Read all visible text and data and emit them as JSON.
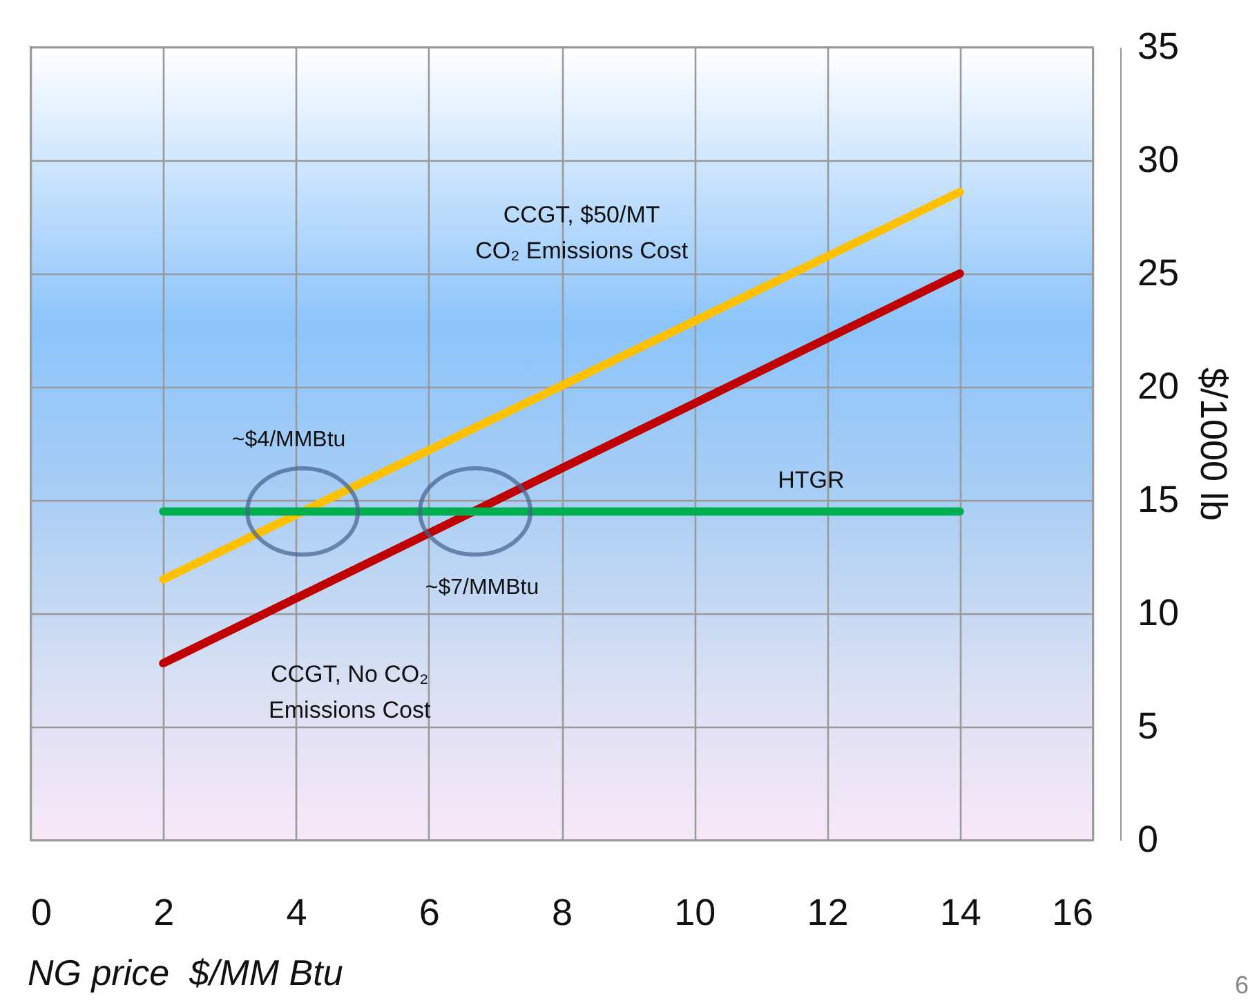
{
  "chart_data": {
    "type": "line",
    "xlabel": "NG price  $/MM Btu",
    "ylabel": "$/1000 lb",
    "x": [
      2,
      14
    ],
    "series": [
      {
        "name": "CCGT, $50/MT\nCO₂ Emissions Cost",
        "color": "#ffc000",
        "values": [
          11.5,
          28.6
        ]
      },
      {
        "name": "CCGT, No CO₂\nEmissions Cost",
        "color": "#c00000",
        "values": [
          7.8,
          25
        ]
      },
      {
        "name": "HTGR",
        "color": "#00b050",
        "values": [
          14.5,
          14.5
        ]
      }
    ],
    "annotations": [
      {
        "text": "~$4/MMBtu",
        "x": 4.1,
        "y": 14.5
      },
      {
        "text": "~$7/MMBtu",
        "x": 6.7,
        "y": 14.5
      },
      "6"
    ],
    "xlim": [
      0,
      16
    ],
    "xticks": [
      0,
      2,
      4,
      6,
      8,
      10,
      12,
      14,
      16
    ],
    "ylim": [
      0,
      35
    ],
    "yticks": [
      0,
      5,
      10,
      15,
      20,
      25,
      30,
      35
    ],
    "grid": true,
    "line_style": "solid",
    "marker": "none"
  }
}
